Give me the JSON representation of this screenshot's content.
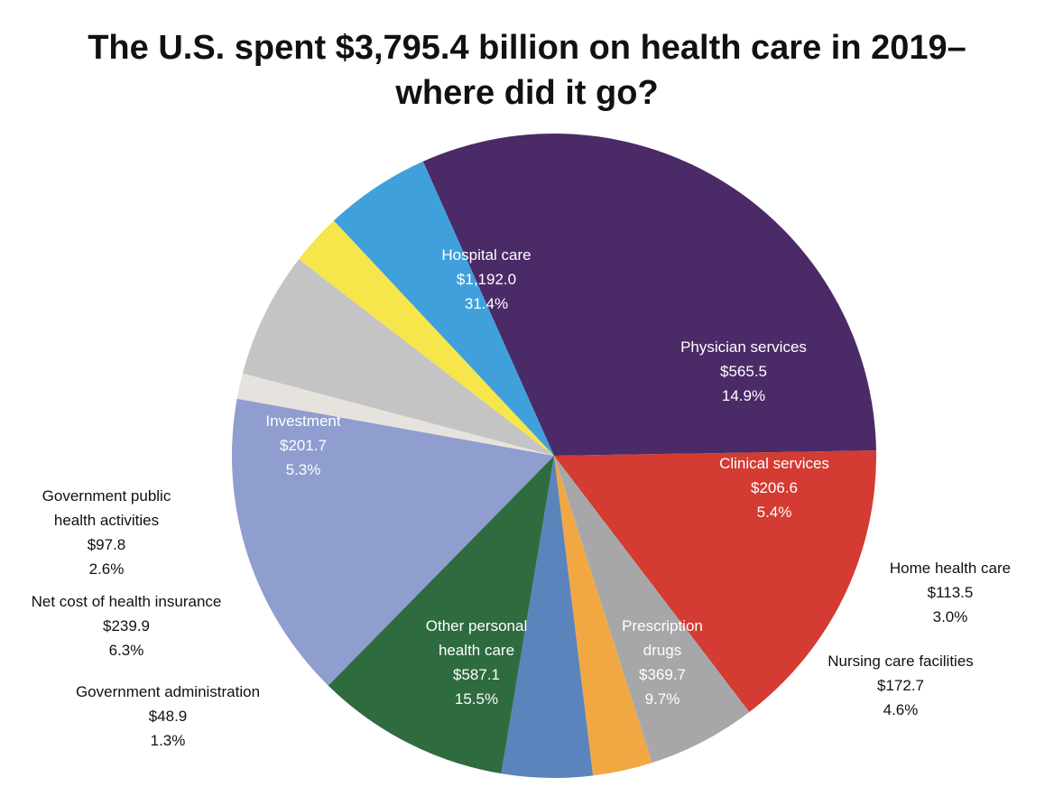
{
  "title_line1": "The U.S. spent $3,795.4 billion on health care in 2019–",
  "title_line2": "where did it go?",
  "chart_data": {
    "type": "pie",
    "slices": [
      {
        "label": [
          "Hospital care"
        ],
        "value": 1192.0,
        "display_value": "$1,192.0",
        "percent": "31.4%",
        "color": "#4b2a68",
        "label_inside": true
      },
      {
        "label": [
          "Physician services"
        ],
        "value": 565.5,
        "display_value": "$565.5",
        "percent": "14.9%",
        "color": "#d33b33",
        "label_inside": true
      },
      {
        "label": [
          "Clinical services"
        ],
        "value": 206.6,
        "display_value": "$206.6",
        "percent": "5.4%",
        "color": "#a7a7a9",
        "label_inside": true
      },
      {
        "label": [
          "Home health care"
        ],
        "value": 113.5,
        "display_value": "$113.5",
        "percent": "3.0%",
        "color": "#f1a843",
        "label_inside": false
      },
      {
        "label": [
          "Nursing care facilities"
        ],
        "value": 172.7,
        "display_value": "$172.7",
        "percent": "4.6%",
        "color": "#5b84bd",
        "label_inside": false
      },
      {
        "label": [
          "Prescription",
          "drugs"
        ],
        "value": 369.7,
        "display_value": "$369.7",
        "percent": "9.7%",
        "color": "#2e6b3f",
        "label_inside": true
      },
      {
        "label": [
          "Other personal",
          "health care"
        ],
        "value": 587.1,
        "display_value": "$587.1",
        "percent": "15.5%",
        "color": "#8f9dcf",
        "label_inside": true
      },
      {
        "label": [
          "Government administration"
        ],
        "value": 48.9,
        "display_value": "$48.9",
        "percent": "1.3%",
        "color": "#e6e2dd",
        "label_inside": false
      },
      {
        "label": [
          "Net cost of health insurance"
        ],
        "value": 239.9,
        "display_value": "$239.9",
        "percent": "6.3%",
        "color": "#c4c4c4",
        "label_inside": false
      },
      {
        "label": [
          "Government public",
          "health activities"
        ],
        "value": 97.8,
        "display_value": "$97.8",
        "percent": "2.6%",
        "color": "#f6e54b",
        "label_inside": false
      },
      {
        "label": [
          "Investment"
        ],
        "value": 201.7,
        "display_value": "$201.7",
        "percent": "5.3%",
        "color": "#3fa0dc",
        "label_inside": true
      }
    ],
    "total": 3795.4,
    "start_angle_deg": -24,
    "direction": "clockwise",
    "legend": "none"
  }
}
